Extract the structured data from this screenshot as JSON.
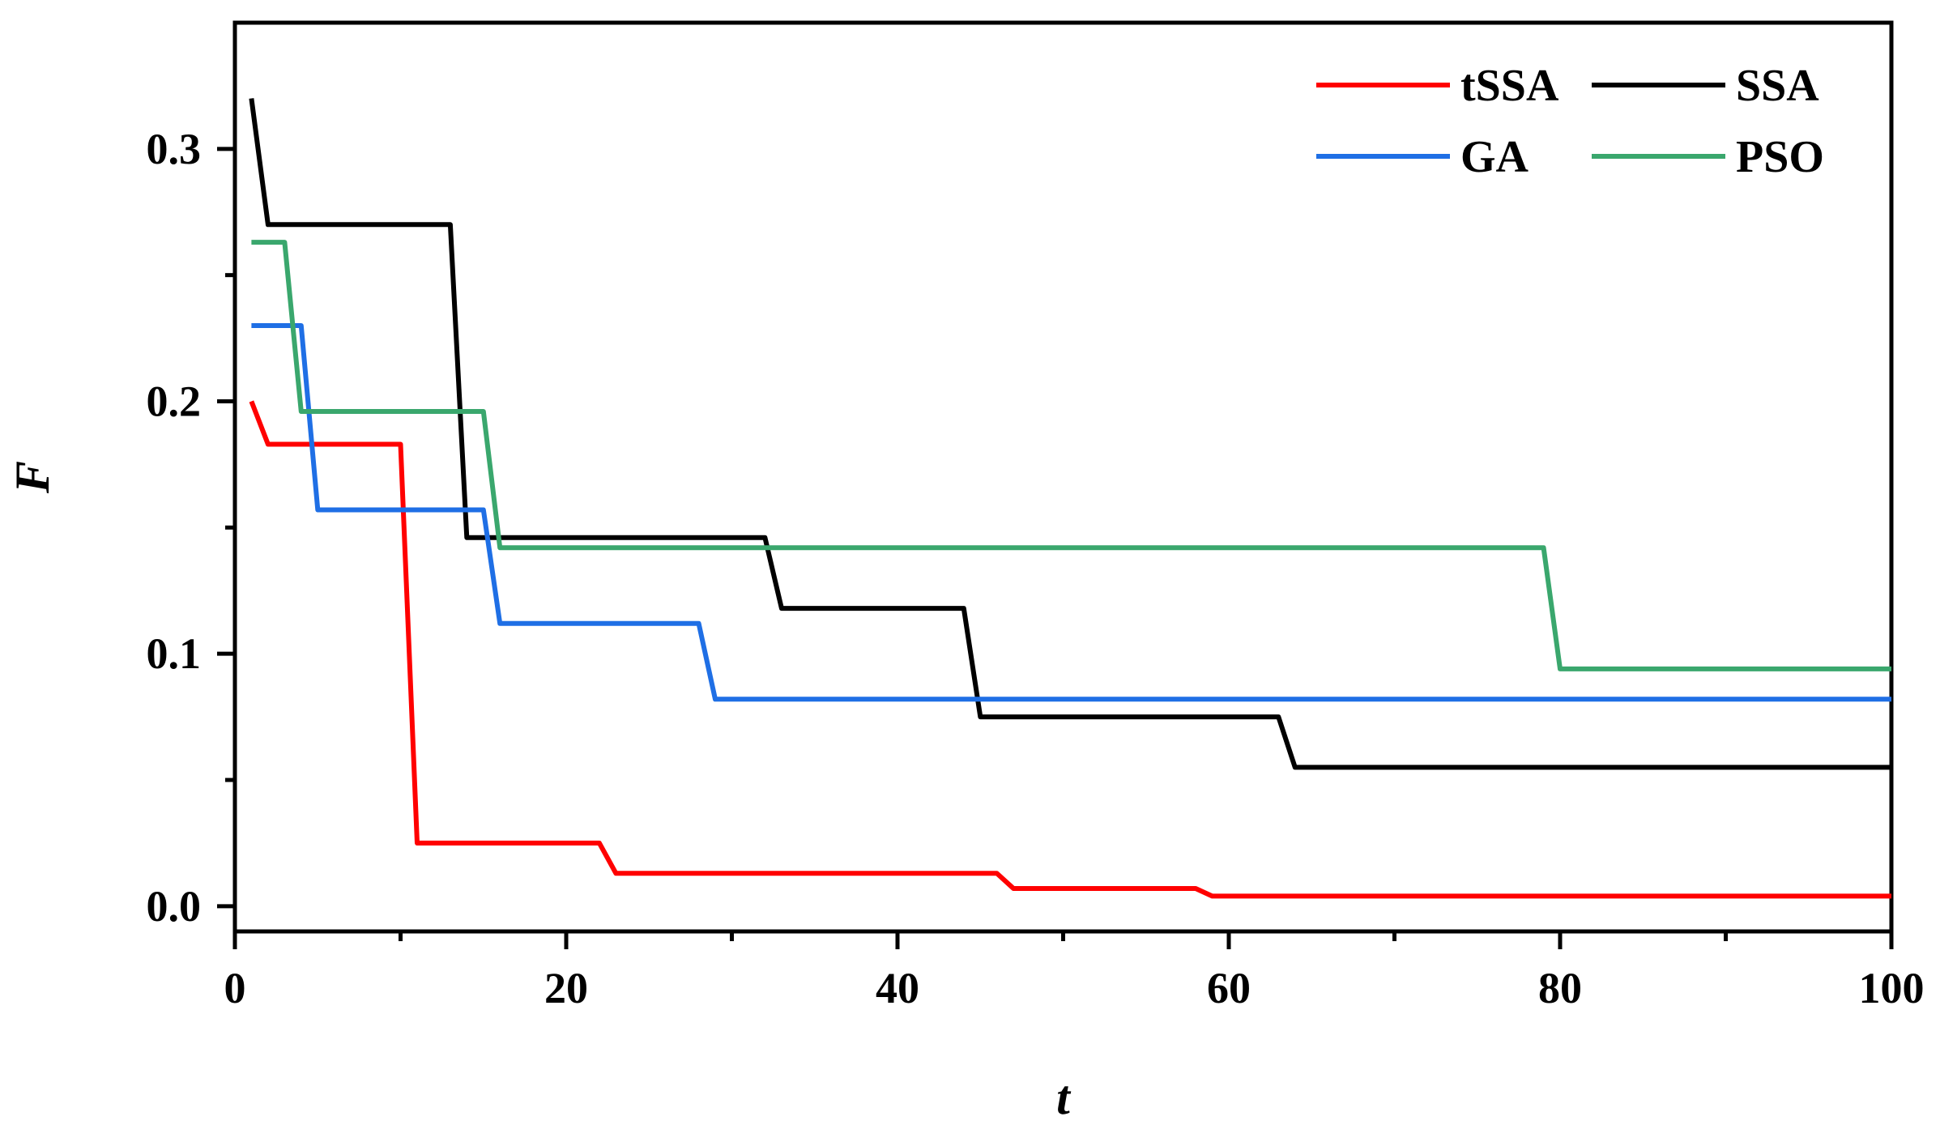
{
  "chart_data": {
    "type": "line",
    "title": "",
    "xlabel": "t",
    "ylabel": "F",
    "xlim": [
      0,
      100
    ],
    "ylim": [
      -0.01,
      0.35
    ],
    "xticks": [
      0,
      20,
      40,
      60,
      80,
      100
    ],
    "xtick_labels": [
      "0",
      "20",
      "40",
      "60",
      "80",
      "100"
    ],
    "xminor": [
      10,
      30,
      50,
      70,
      90
    ],
    "yticks": [
      0,
      0.1,
      0.2,
      0.3
    ],
    "ytick_labels": [
      "0.0",
      "0.1",
      "0.2",
      "0.3"
    ],
    "yminor": [
      0.05,
      0.15,
      0.25
    ],
    "grid": false,
    "legend_position": "top-right",
    "series": [
      {
        "name": "tSSA",
        "color": "#ff0000",
        "x": [
          1,
          2,
          10,
          11,
          22,
          23,
          46,
          47,
          58,
          59,
          100
        ],
        "y": [
          0.2,
          0.183,
          0.183,
          0.025,
          0.025,
          0.013,
          0.013,
          0.007,
          0.007,
          0.004,
          0.004
        ]
      },
      {
        "name": "SSA",
        "color": "#000000",
        "x": [
          1,
          2,
          13,
          14,
          32,
          33,
          44,
          45,
          63,
          64,
          100
        ],
        "y": [
          0.32,
          0.27,
          0.27,
          0.146,
          0.146,
          0.118,
          0.118,
          0.075,
          0.075,
          0.055,
          0.055
        ]
      },
      {
        "name": "GA",
        "color": "#1f6fe5",
        "x": [
          1,
          4,
          5,
          15,
          16,
          28,
          29,
          100
        ],
        "y": [
          0.23,
          0.23,
          0.157,
          0.157,
          0.112,
          0.112,
          0.082,
          0.082
        ]
      },
      {
        "name": "PSO",
        "color": "#3aa76d",
        "x": [
          1,
          3,
          4,
          15,
          16,
          79,
          80,
          100
        ],
        "y": [
          0.263,
          0.263,
          0.196,
          0.196,
          0.142,
          0.142,
          0.094,
          0.094
        ]
      }
    ]
  }
}
